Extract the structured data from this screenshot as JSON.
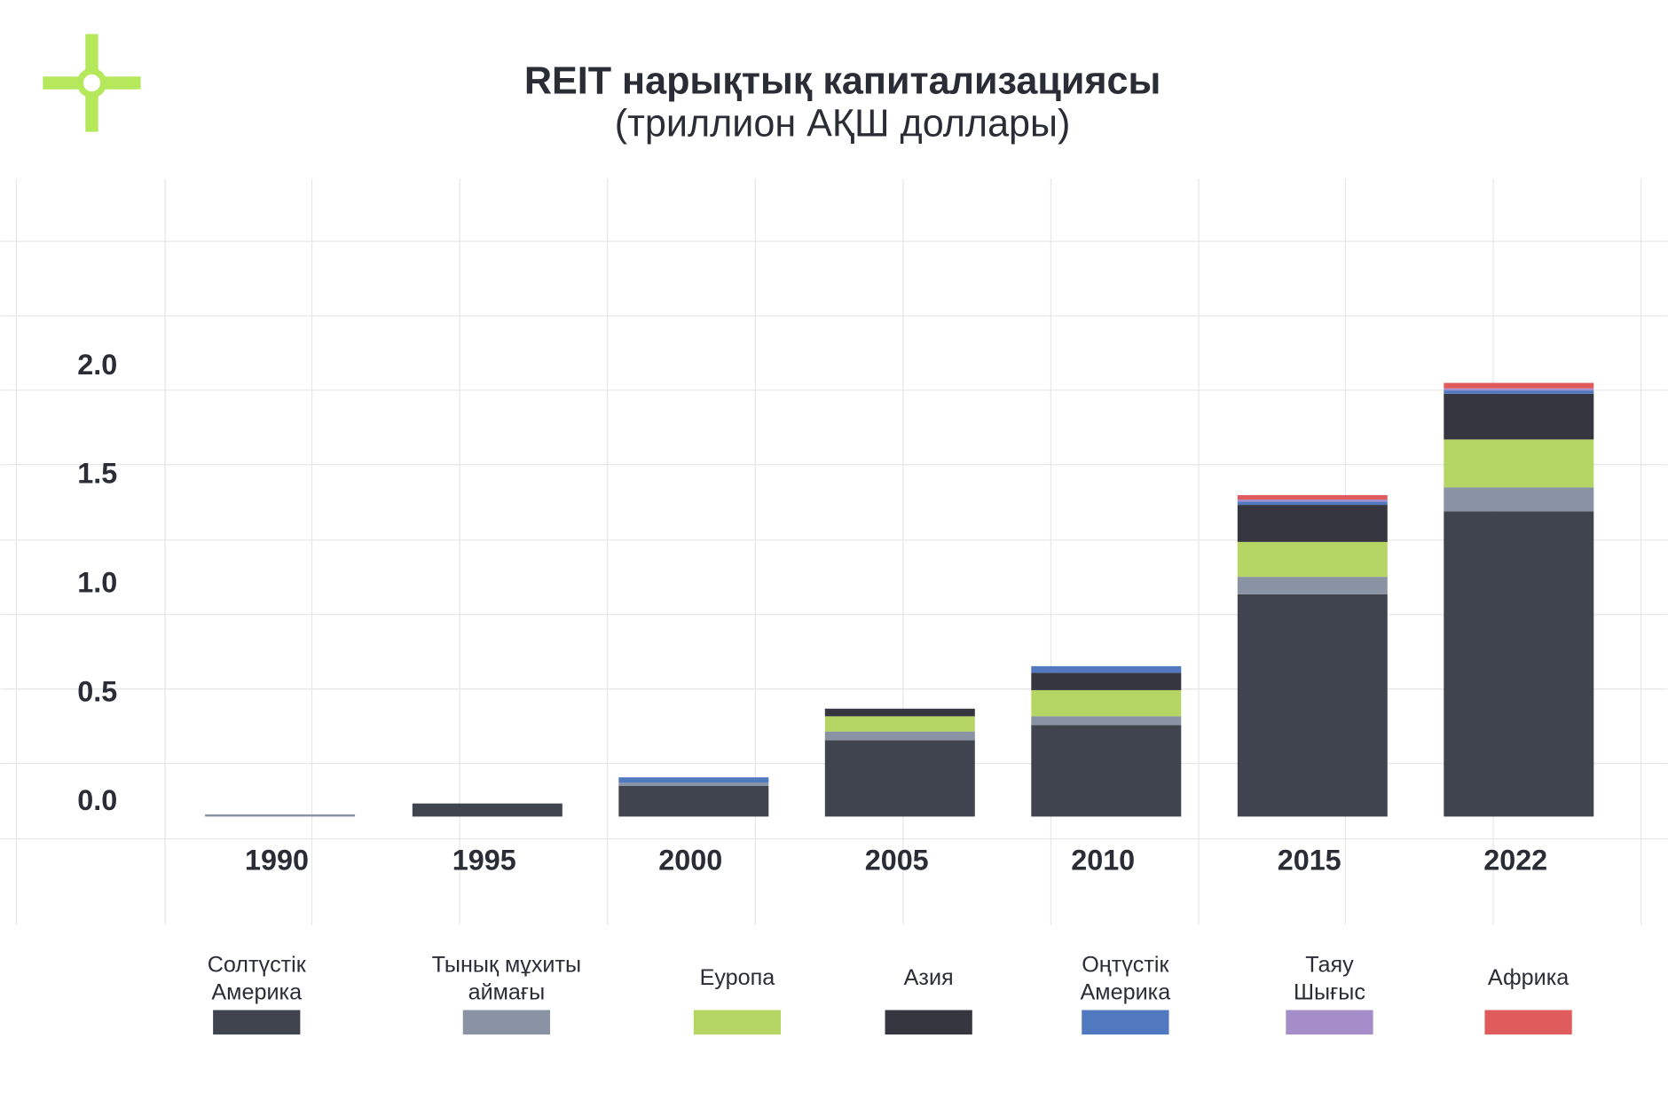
{
  "chart_data": {
    "type": "bar",
    "stacked": true,
    "title": "REIT нарықтық капитализациясы",
    "subtitle": "(триллион АҚШ доллары)",
    "xlabel": "",
    "ylabel": "",
    "ylim": [
      0,
      2.0
    ],
    "yticks": [
      "0.0",
      "0.5",
      "1.0",
      "1.5",
      "2.0"
    ],
    "ytick_values": [
      0,
      0.5,
      1.0,
      1.5,
      2.0
    ],
    "grid": true,
    "legend_placement": "bottom",
    "categories": [
      "1990",
      "1995",
      "2000",
      "2005",
      "2010",
      "2015",
      "2022"
    ],
    "series": [
      {
        "name": "Солтүстік Америка",
        "label_lines": [
          "Солтүстік",
          "Америка"
        ],
        "color": "#3f444f",
        "values": [
          0.0,
          0.06,
          0.14,
          0.35,
          0.42,
          1.02,
          1.4
        ]
      },
      {
        "name": "Тынық мұхиты аймағы",
        "label_lines": [
          "Тынық мұхиты",
          "аймағы"
        ],
        "color": "#8a93a3",
        "values": [
          0.01,
          0.0,
          0.015,
          0.04,
          0.04,
          0.08,
          0.11
        ]
      },
      {
        "name": "Еуропа",
        "label_lines": [
          "Еуропа"
        ],
        "color": "#b5d665",
        "values": [
          0.0,
          0.0,
          0.0,
          0.07,
          0.12,
          0.16,
          0.22
        ]
      },
      {
        "name": "Азия",
        "label_lines": [
          "Азия"
        ],
        "color": "#35363f",
        "values": [
          0.0,
          0.0,
          0.0,
          0.035,
          0.08,
          0.17,
          0.21
        ]
      },
      {
        "name": "Оңтүстік Америка",
        "label_lines": [
          "Оңтүстік",
          "Америка"
        ],
        "color": "#5079c0",
        "values": [
          0.0,
          0.0,
          0.025,
          0.0,
          0.03,
          0.015,
          0.015
        ]
      },
      {
        "name": "Таяу Шығыс",
        "label_lines": [
          "Таяу",
          "Шығыс"
        ],
        "color": "#a48dc9",
        "values": [
          0.0,
          0.0,
          0.0,
          0.0,
          0.0,
          0.005,
          0.005
        ]
      },
      {
        "name": "Африка",
        "label_lines": [
          "Африка"
        ],
        "color": "#e05c5c",
        "values": [
          0.0,
          0.0,
          0.0,
          0.0,
          0.0,
          0.02,
          0.025
        ]
      }
    ]
  },
  "logo": {
    "color": "#b5e85a"
  }
}
